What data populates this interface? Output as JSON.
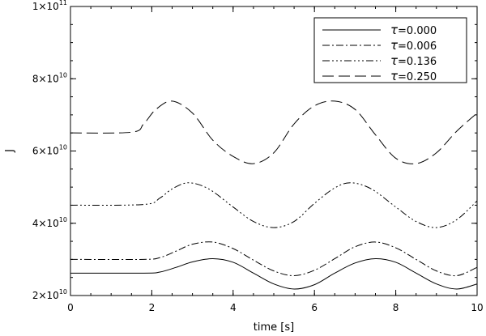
{
  "chart_data": {
    "type": "line",
    "title": "",
    "xlabel": "time [s]",
    "ylabel": "J",
    "xlim": [
      0,
      10
    ],
    "ylim": [
      20000000000.0,
      100000000000.0
    ],
    "x_ticks": [
      0,
      2,
      4,
      6,
      8,
      10
    ],
    "y_ticks": [
      {
        "mantissa": "2",
        "exponent": "10",
        "value": 20000000000.0
      },
      {
        "mantissa": "4",
        "exponent": "10",
        "value": 40000000000.0
      },
      {
        "mantissa": "6",
        "exponent": "10",
        "value": 60000000000.0
      },
      {
        "mantissa": "8",
        "exponent": "10",
        "value": 80000000000.0
      },
      {
        "mantissa": "1",
        "exponent": "11",
        "value": 100000000000.0
      }
    ],
    "legend_position": "top-right",
    "grid": false,
    "series": [
      {
        "name": "τ=0.000",
        "symbol": "τ",
        "label_value": "=0.000",
        "dash": "solid",
        "x": [
          0,
          1.8,
          2.2,
          2.6,
          3.0,
          3.5,
          4.0,
          4.5,
          5.0,
          5.5,
          6.0,
          6.5,
          7.0,
          7.5,
          8.0,
          8.5,
          9.0,
          9.5,
          10.0
        ],
        "y": [
          26200000000.0,
          26200000000.0,
          26500000000.0,
          27800000000.0,
          29300000000.0,
          30200000000.0,
          29200000000.0,
          26200000000.0,
          23200000000.0,
          21800000000.0,
          23000000000.0,
          26200000000.0,
          29000000000.0,
          30200000000.0,
          29200000000.0,
          26200000000.0,
          23200000000.0,
          21800000000.0,
          23200000000.0
        ]
      },
      {
        "name": "τ=0.006",
        "symbol": "τ",
        "label_value": "=0.006",
        "dash": "dashdot",
        "x": [
          0,
          1.8,
          2.2,
          2.6,
          3.0,
          3.5,
          4.0,
          4.5,
          5.0,
          5.5,
          6.0,
          6.5,
          7.0,
          7.5,
          8.0,
          8.5,
          9.0,
          9.5,
          10.0
        ],
        "y": [
          30000000000.0,
          30000000000.0,
          30500000000.0,
          32300000000.0,
          34200000000.0,
          34800000000.0,
          33000000000.0,
          29800000000.0,
          26800000000.0,
          25500000000.0,
          27000000000.0,
          30200000000.0,
          33500000000.0,
          34800000000.0,
          33200000000.0,
          30000000000.0,
          26800000000.0,
          25500000000.0,
          27800000000.0
        ]
      },
      {
        "name": "τ=0.136",
        "symbol": "τ",
        "label_value": "=0.136",
        "dash": "dashdotdotdot",
        "x": [
          0,
          1.8,
          2.2,
          2.5,
          2.9,
          3.4,
          4.0,
          4.5,
          5.0,
          5.5,
          6.0,
          6.5,
          6.9,
          7.4,
          8.0,
          8.5,
          9.0,
          9.5,
          10.0
        ],
        "y": [
          45000000000.0,
          45200000000.0,
          47000000000.0,
          49500000000.0,
          51200000000.0,
          49500000000.0,
          44500000000.0,
          40500000000.0,
          38800000000.0,
          40500000000.0,
          45500000000.0,
          49800000000.0,
          51200000000.0,
          49500000000.0,
          44500000000.0,
          40500000000.0,
          38800000000.0,
          41000000000.0,
          46200000000.0
        ]
      },
      {
        "name": "τ=0.250",
        "symbol": "τ",
        "label_value": "=0.250",
        "dash": "longdash",
        "x": [
          0,
          1.5,
          1.8,
          2.1,
          2.5,
          3.0,
          3.5,
          4.0,
          4.5,
          5.0,
          5.5,
          6.0,
          6.5,
          7.0,
          7.5,
          8.0,
          8.5,
          9.0,
          9.5,
          10.0
        ],
        "y": [
          65000000000.0,
          65200000000.0,
          67500000000.0,
          71500000000.0,
          73800000000.0,
          70500000000.0,
          63000000000.0,
          58500000000.0,
          56500000000.0,
          59500000000.0,
          67500000000.0,
          72500000000.0,
          73800000000.0,
          71500000000.0,
          64500000000.0,
          58000000000.0,
          56500000000.0,
          59500000000.0,
          65500000000.0,
          70500000000.0
        ]
      }
    ]
  }
}
